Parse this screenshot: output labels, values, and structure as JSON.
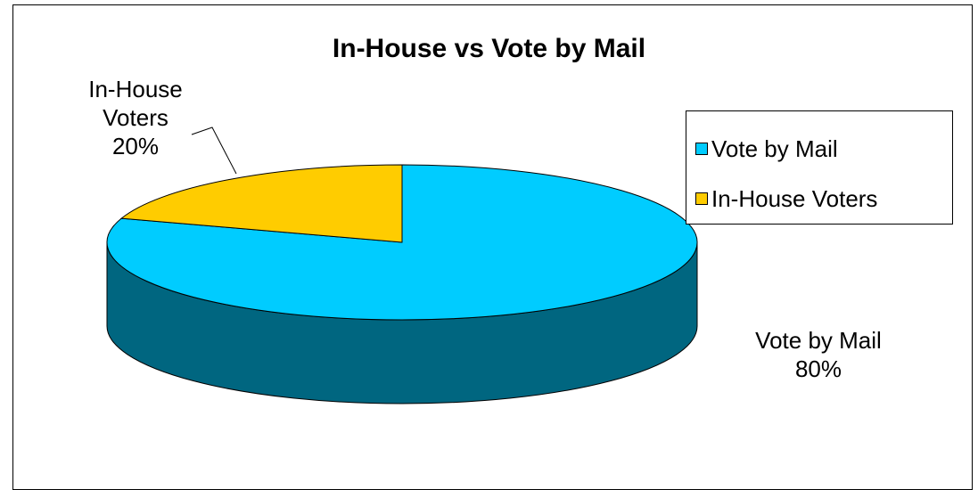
{
  "chart_data": {
    "type": "pie",
    "title": "In-House vs Vote by Mail",
    "slices": [
      {
        "label": "Vote by Mail",
        "value": 80,
        "color": "#00CCFF",
        "side_color": "#006680",
        "display_label": [
          "Vote by Mail",
          "80%"
        ]
      },
      {
        "label": "In-House Voters",
        "value": 20,
        "color": "#FFCC00",
        "side_color": "#806600",
        "display_label": [
          "In-House",
          "Voters",
          "20%"
        ]
      }
    ],
    "legend": {
      "position": "right",
      "entries": [
        "Vote by Mail",
        "In-House Voters"
      ]
    },
    "three_d": true
  }
}
